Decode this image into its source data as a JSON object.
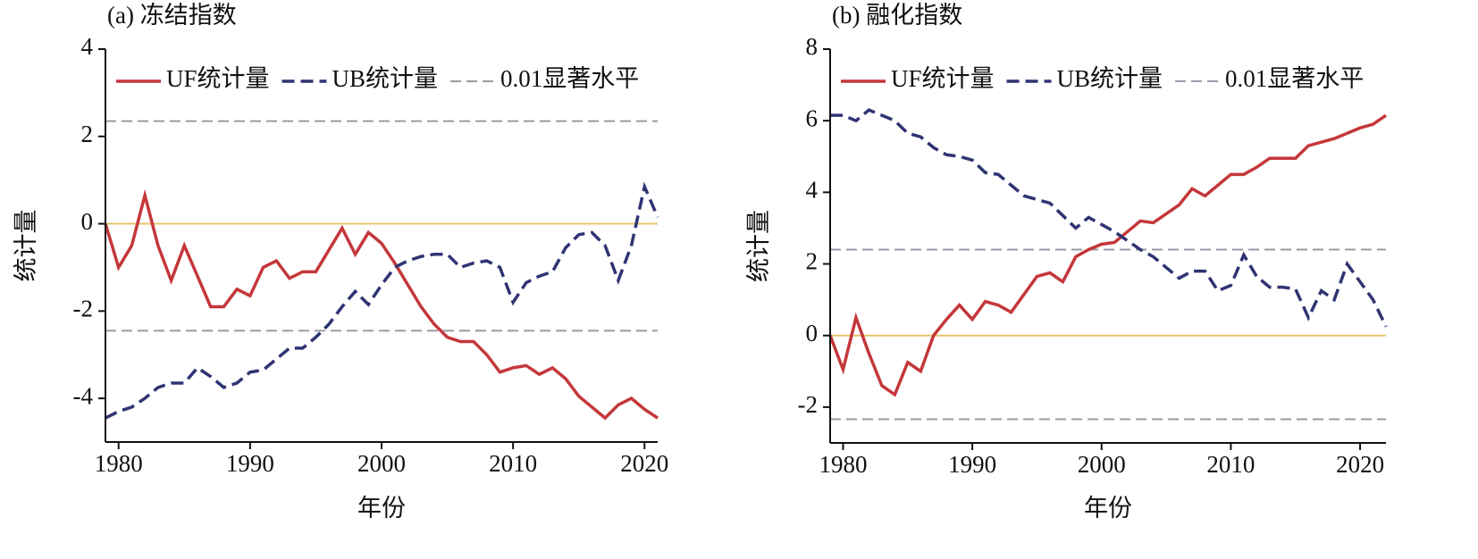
{
  "chart_data": [
    {
      "type": "line",
      "title": "(a) 冻结指数",
      "xlabel": "年份",
      "ylabel": "统计量",
      "x": [
        1979,
        1980,
        1981,
        1982,
        1983,
        1984,
        1985,
        1986,
        1987,
        1988,
        1989,
        1990,
        1991,
        1992,
        1993,
        1994,
        1995,
        1996,
        1997,
        1998,
        1999,
        2000,
        2001,
        2002,
        2003,
        2004,
        2005,
        2006,
        2007,
        2008,
        2009,
        2010,
        2011,
        2012,
        2013,
        2014,
        2015,
        2016,
        2017,
        2018,
        2019,
        2020,
        2021
      ],
      "xlim": [
        1979,
        2021
      ],
      "xticks": [
        1980,
        1990,
        2000,
        2010,
        2020
      ],
      "ylim": [
        -5,
        4
      ],
      "yticks": [
        -4,
        -2,
        0,
        2,
        4
      ],
      "legend": "top",
      "series": [
        {
          "name": "UF统计量",
          "color": "#c4373a",
          "dash": "solid",
          "values": [
            0,
            -1.0,
            -0.5,
            0.65,
            -0.5,
            -1.3,
            -0.5,
            -1.2,
            -1.9,
            -1.9,
            -1.5,
            -1.65,
            -1.0,
            -0.85,
            -1.25,
            -1.1,
            -1.1,
            -0.6,
            -0.1,
            -0.7,
            -0.2,
            -0.45,
            -0.9,
            -1.4,
            -1.9,
            -2.3,
            -2.6,
            -2.7,
            -2.7,
            -3.0,
            -3.4,
            -3.3,
            -3.25,
            -3.45,
            -3.3,
            -3.55,
            -3.95,
            -4.2,
            -4.45,
            -4.15,
            -4.0,
            -4.25,
            -4.45
          ]
        },
        {
          "name": "UB统计量",
          "color": "#2f3473",
          "dash": "dashed",
          "values": [
            -4.45,
            -4.3,
            -4.2,
            -4.0,
            -3.75,
            -3.65,
            -3.65,
            -3.3,
            -3.5,
            -3.75,
            -3.65,
            -3.4,
            -3.35,
            -3.1,
            -2.85,
            -2.85,
            -2.6,
            -2.3,
            -1.9,
            -1.55,
            -1.85,
            -1.4,
            -1.0,
            -0.85,
            -0.75,
            -0.7,
            -0.7,
            -1.0,
            -0.9,
            -0.85,
            -1.0,
            -1.8,
            -1.35,
            -1.2,
            -1.1,
            -0.55,
            -0.25,
            -0.2,
            -0.5,
            -1.3,
            -0.5,
            0.85,
            0.15
          ]
        }
      ],
      "reference_lines": [
        {
          "name": "0.01显著水平",
          "color": "#9a9aa6",
          "values": [
            2.35,
            -2.45
          ]
        },
        {
          "color": "#e8c66c",
          "values": [
            0
          ]
        }
      ]
    },
    {
      "type": "line",
      "title": "(b) 融化指数",
      "xlabel": "年份",
      "ylabel": "统计量",
      "x": [
        1979,
        1980,
        1981,
        1982,
        1983,
        1984,
        1985,
        1986,
        1987,
        1988,
        1989,
        1990,
        1991,
        1992,
        1993,
        1994,
        1995,
        1996,
        1997,
        1998,
        1999,
        2000,
        2001,
        2002,
        2003,
        2004,
        2005,
        2006,
        2007,
        2008,
        2009,
        2010,
        2011,
        2012,
        2013,
        2014,
        2015,
        2016,
        2017,
        2018,
        2019,
        2020,
        2021,
        2022
      ],
      "xlim": [
        1979,
        2022
      ],
      "xticks": [
        1980,
        1990,
        2000,
        2010,
        2020
      ],
      "ylim": [
        -3,
        8
      ],
      "yticks": [
        -2,
        0,
        2,
        4,
        6,
        8
      ],
      "legend": "top",
      "series": [
        {
          "name": "UF统计量",
          "color": "#c4373a",
          "dash": "solid",
          "values": [
            0,
            -0.95,
            0.5,
            -0.5,
            -1.4,
            -1.65,
            -0.75,
            -1.0,
            0.0,
            0.45,
            0.85,
            0.45,
            0.95,
            0.85,
            0.65,
            1.15,
            1.65,
            1.75,
            1.5,
            2.2,
            2.4,
            2.55,
            2.6,
            2.9,
            3.2,
            3.15,
            3.4,
            3.65,
            4.1,
            3.9,
            4.2,
            4.5,
            4.5,
            4.7,
            4.95,
            4.95,
            4.95,
            5.3,
            5.4,
            5.5,
            5.65,
            5.8,
            5.9,
            6.15
          ]
        },
        {
          "name": "UB统计量",
          "color": "#2f3473",
          "dash": "dashed",
          "values": [
            6.15,
            6.15,
            6.0,
            6.3,
            6.15,
            6.0,
            5.65,
            5.55,
            5.25,
            5.05,
            5.0,
            4.9,
            4.55,
            4.5,
            4.2,
            3.9,
            3.8,
            3.7,
            3.35,
            3.0,
            3.3,
            3.1,
            2.9,
            2.65,
            2.4,
            2.2,
            1.9,
            1.6,
            1.8,
            1.8,
            1.25,
            1.4,
            2.25,
            1.65,
            1.35,
            1.35,
            1.3,
            0.5,
            1.25,
            1.0,
            2.0,
            1.5,
            1.0,
            0.25
          ]
        }
      ],
      "reference_lines": [
        {
          "name": "0.01显著水平",
          "color": "#9a9aa6",
          "values": [
            2.4,
            -2.34
          ]
        },
        {
          "color": "#e8c66c",
          "values": [
            0
          ]
        }
      ]
    }
  ]
}
